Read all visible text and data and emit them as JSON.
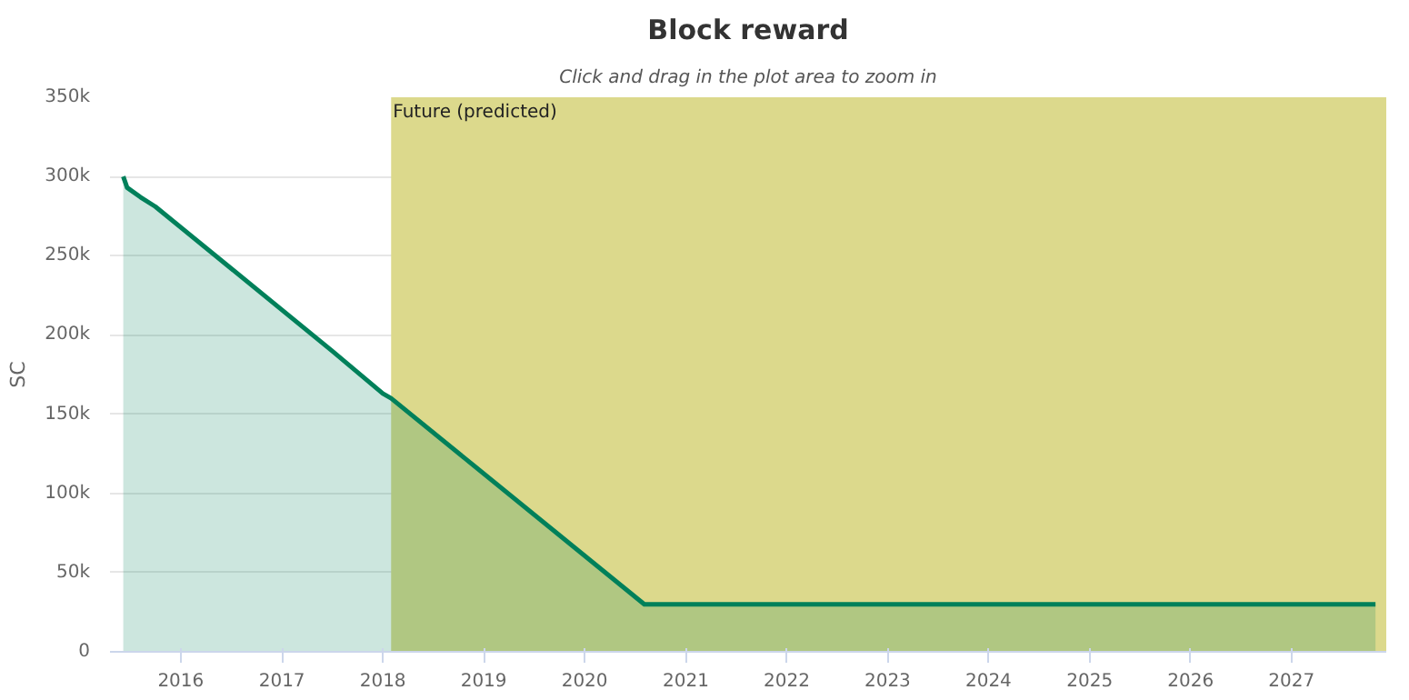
{
  "chart_data": {
    "type": "area",
    "title": "Block reward",
    "subtitle": "Click and drag in the plot area to zoom in",
    "ylabel": "SC",
    "x": [
      "2015-06-07",
      "2015-06-21",
      "2015-08-08",
      "2015-10-01",
      "2016-07-01",
      "2017-07-01",
      "2018-01-01",
      "2018-01-31",
      "2020-08-04",
      "2027-11-01"
    ],
    "series": [
      {
        "color": "#00805a",
        "values": [
          300000,
          293000,
          287000,
          281000,
          242000,
          190000,
          163000,
          160000,
          30000,
          30000
        ]
      }
    ],
    "xlim": [
      "2015-04-20",
      "2027-12-10"
    ],
    "xticks": [
      "2016",
      "2017",
      "2018",
      "2019",
      "2020",
      "2021",
      "2022",
      "2023",
      "2024",
      "2025",
      "2026",
      "2027"
    ],
    "ylim": [
      0,
      350000
    ],
    "yticks": [
      0,
      {
        "value": 50000,
        "label": "50k"
      },
      {
        "value": 100000,
        "label": "100k"
      },
      {
        "value": 150000,
        "label": "150k"
      },
      {
        "value": 200000,
        "label": "200k"
      },
      {
        "value": 250000,
        "label": "250k"
      },
      {
        "value": 300000,
        "label": "300k"
      },
      {
        "value": 350000,
        "label": "350k"
      }
    ],
    "bands": [
      {
        "axis": "x",
        "from": "2018-01-31",
        "to": "2027-12-10",
        "label": "Future (predicted)",
        "color": "#dcd98c"
      }
    ],
    "grid": "y"
  }
}
